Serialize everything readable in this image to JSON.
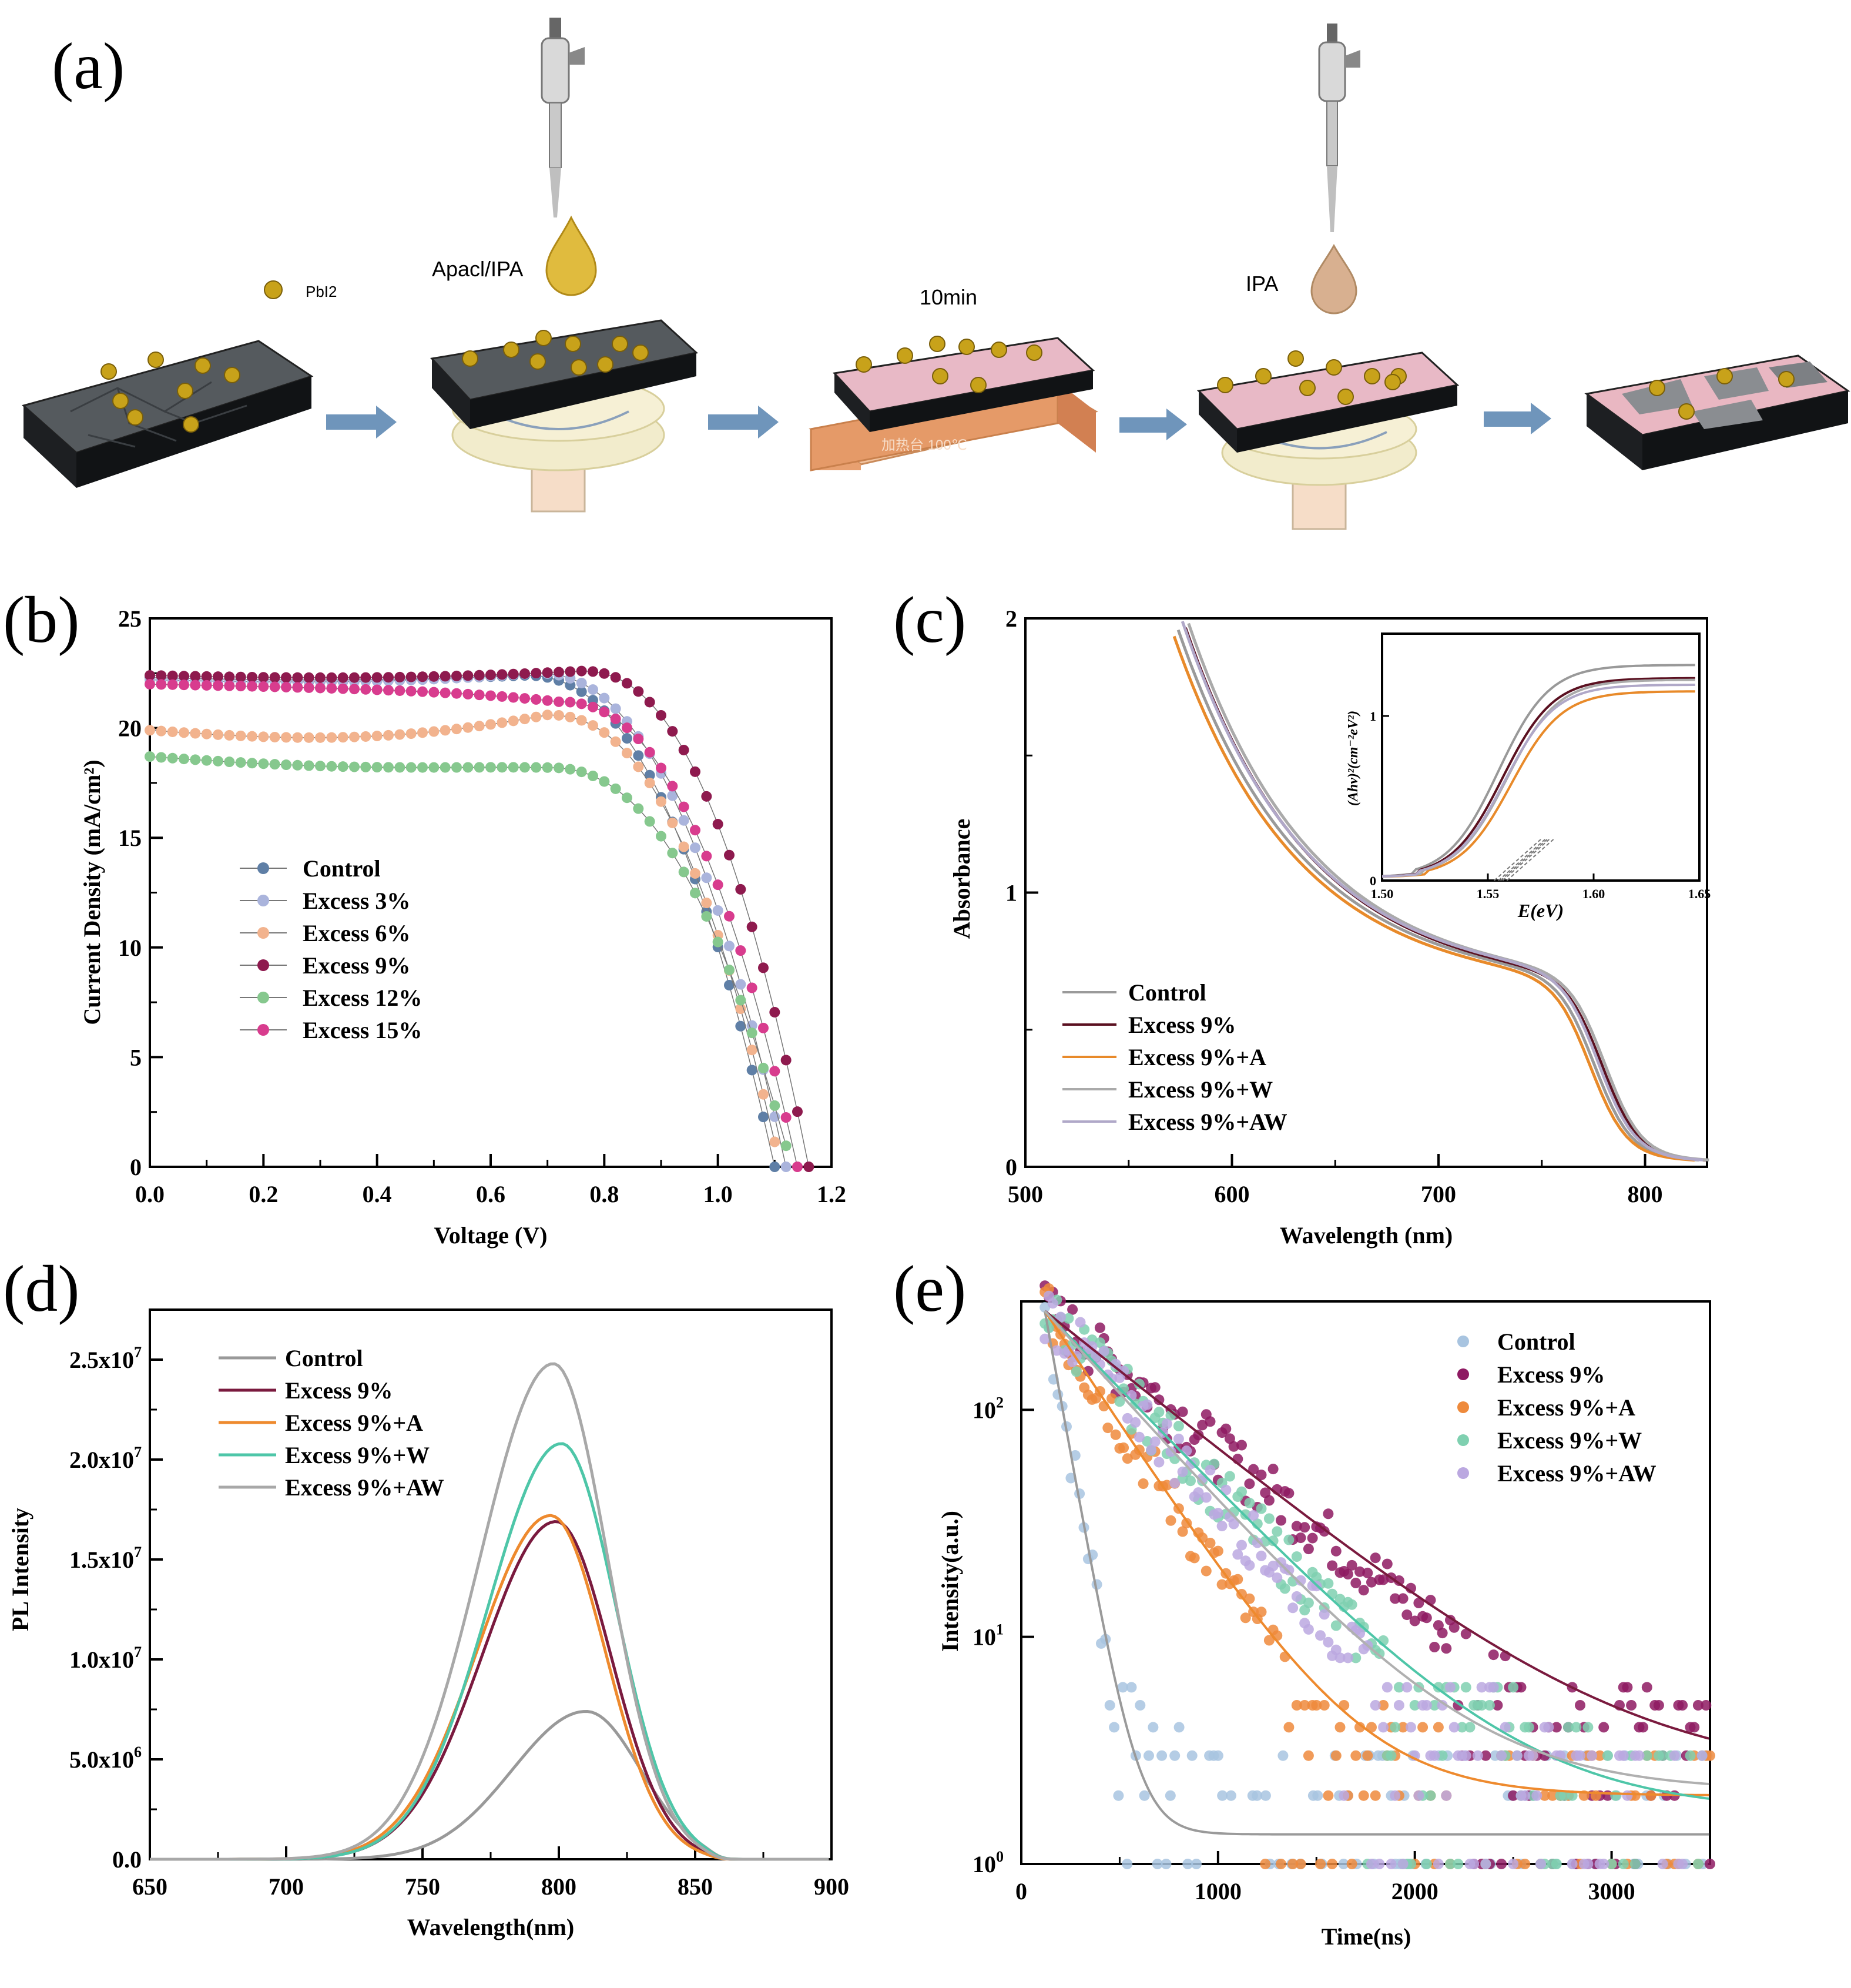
{
  "panel_labels": [
    "(a)",
    "(b)",
    "(c)",
    "(d)",
    "(e)"
  ],
  "schematic": {
    "labels": {
      "pbi2": "PbI2",
      "apacl": "Apacl/IPA",
      "time": "10min",
      "ipa": "IPA",
      "hotplate": "加热台 100℃"
    },
    "colors": {
      "film": "#555a5e",
      "grain": "#3a3e42",
      "ball": "#c8a21a",
      "drop1": "#e0bb3e",
      "drop2": "#d8b090",
      "arrow": "#6f95bb",
      "spin": "#f2eccc",
      "hot": "#e8a070",
      "treated": "#e8b9c6"
    }
  },
  "chart_data": [
    {
      "id": "b",
      "type": "scatter",
      "xlabel": "Voltage (V)",
      "ylabel": "Current Density (mA/cm²)",
      "xlim": [
        0,
        1.2
      ],
      "ylim": [
        0,
        25
      ],
      "xticks": [
        "0.0",
        "0.2",
        "0.4",
        "0.6",
        "0.8",
        "1.0",
        "1.2"
      ],
      "yticks": [
        "0",
        "5",
        "10",
        "15",
        "20",
        "25"
      ],
      "legend_position": "center-left",
      "series": [
        {
          "name": "Control",
          "color": "#5f7fa6",
          "jsc": 22.3,
          "voc": 1.1,
          "hump": 22.4,
          "vk": 0.66
        },
        {
          "name": "Excess 3%",
          "color": "#aab4dc",
          "jsc": 22.2,
          "voc": 1.12,
          "hump": 22.5,
          "vk": 0.68
        },
        {
          "name": "Excess 6%",
          "color": "#f2b38e",
          "jsc": 19.9,
          "voc": 1.11,
          "hump": 20.6,
          "vk": 0.7
        },
        {
          "name": "Excess 9%",
          "color": "#8e1a4e",
          "jsc": 22.4,
          "voc": 1.16,
          "hump": 22.6,
          "vk": 0.76
        },
        {
          "name": "Excess 12%",
          "color": "#86c88e",
          "jsc": 18.7,
          "voc": 1.13,
          "hump": 18.2,
          "vk": 0.7
        },
        {
          "name": "Excess 15%",
          "color": "#d83c8e",
          "jsc": 22.0,
          "voc": 1.14,
          "hump": 21.2,
          "vk": 0.72
        }
      ]
    },
    {
      "id": "c",
      "type": "line",
      "xlabel": "Wavelength (nm)",
      "ylabel": "Absorbance",
      "xlim": [
        500,
        830
      ],
      "ylim": [
        0,
        2
      ],
      "xticks": [
        "500",
        "600",
        "700",
        "800"
      ],
      "yticks": [
        "0",
        "1",
        "2"
      ],
      "legend_position": "bottom-left",
      "series": [
        {
          "name": "Control",
          "color": "#9a9a9a"
        },
        {
          "name": "Excess 9%",
          "color": "#5a1020"
        },
        {
          "name": "Excess 9%+A",
          "color": "#e88a2a"
        },
        {
          "name": "Excess 9%+W",
          "color": "#aaaaaa"
        },
        {
          "name": "Excess 9%+AW",
          "color": "#b0a8c8"
        }
      ],
      "inset": {
        "xlabel": "E(eV)",
        "ylabel": "(Ahν)²(cm⁻²eV²)",
        "xlim": [
          1.5,
          1.65
        ],
        "ylim": [
          0,
          1.5
        ],
        "xticks": [
          "1.50",
          "1.55",
          "1.60",
          "1.65"
        ],
        "yticks": [
          "0",
          "1"
        ]
      }
    },
    {
      "id": "d",
      "type": "line",
      "xlabel": "Wavelength(nm)",
      "ylabel": "PL Intensity",
      "xlim": [
        650,
        900
      ],
      "ylim": [
        0,
        27500000.0
      ],
      "xticks": [
        "650",
        "700",
        "750",
        "800",
        "850",
        "900"
      ],
      "yticks": [
        "0.0",
        "5.0x10",
        "1.0x10",
        "1.5x10",
        "2.0x10",
        "2.5x10"
      ],
      "ytick_exponents": [
        "",
        "6",
        "7",
        "7",
        "7",
        "7"
      ],
      "legend_position": "top-left",
      "series": [
        {
          "name": "Control",
          "color": "#999999",
          "peak": 810,
          "amp": 7400000.0
        },
        {
          "name": "Excess 9%",
          "color": "#7a1a3e",
          "peak": 799,
          "amp": 16900000.0
        },
        {
          "name": "Excess 9%+A",
          "color": "#ee8a2e",
          "peak": 797,
          "amp": 17200000.0
        },
        {
          "name": "Excess 9%+W",
          "color": "#4ec6a8",
          "peak": 801,
          "amp": 20800000.0
        },
        {
          "name": "Excess 9%+AW",
          "color": "#a8a8a8",
          "peak": 798,
          "amp": 24800000.0
        }
      ]
    },
    {
      "id": "e",
      "type": "scatter",
      "xlabel": "Time(ns)",
      "ylabel": "Intensity(a.u.)",
      "xlim": [
        0,
        3500
      ],
      "ylim": [
        1,
        300
      ],
      "yscale": "log",
      "xticks": [
        "0",
        "1000",
        "2000",
        "3000"
      ],
      "ytick_base": "10",
      "ytick_exponents": [
        "0",
        "1",
        "2"
      ],
      "legend_position": "top-right",
      "series": [
        {
          "name": "Control",
          "color": "#a8c4e0",
          "tau": 90,
          "floor": 1.35,
          "fit": "#9a9a9a"
        },
        {
          "name": "Excess 9%",
          "color": "#8e1a62",
          "tau": 620,
          "floor": 2.4,
          "fit": "#7a1a3e"
        },
        {
          "name": "Excess 9%+A",
          "color": "#ee8a3c",
          "tau": 330,
          "floor": 2.0,
          "fit": "#ee8a2e"
        },
        {
          "name": "Excess 9%+W",
          "color": "#7fd0b0",
          "tau": 480,
          "floor": 1.7,
          "fit": "#4ec6a8"
        },
        {
          "name": "Excess 9%+AW",
          "color": "#bba8e0",
          "tau": 450,
          "floor": 2.1,
          "fit": "#b0b0b0"
        }
      ]
    }
  ]
}
